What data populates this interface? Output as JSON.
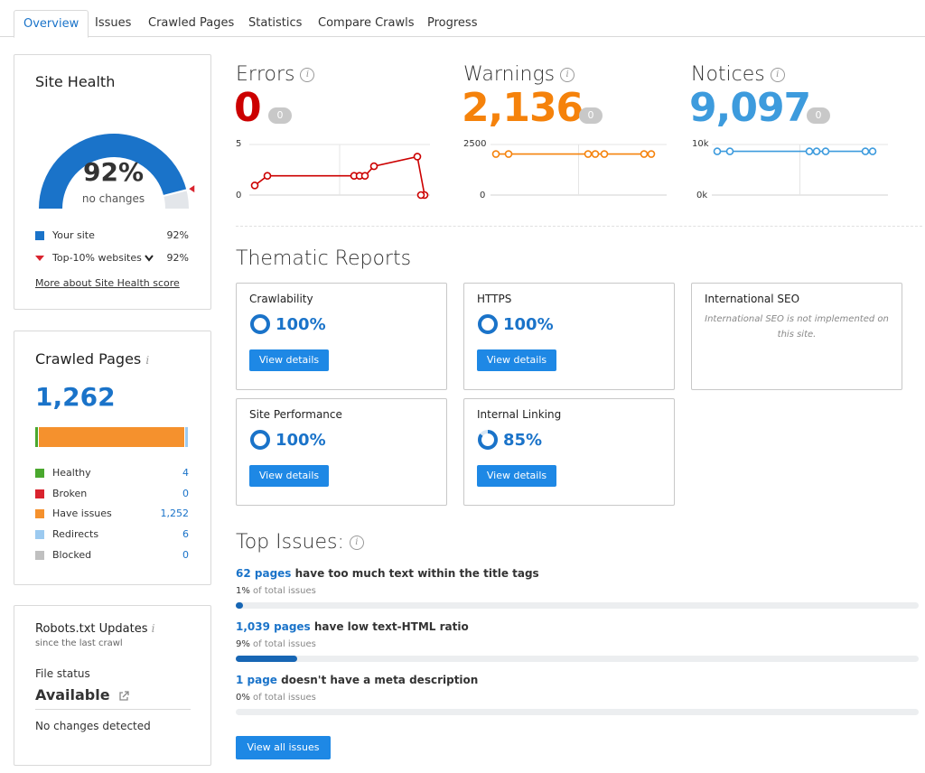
{
  "tabs": [
    {
      "label": "Overview",
      "active": true
    },
    {
      "label": "Issues"
    },
    {
      "label": "Crawled Pages"
    },
    {
      "label": "Statistics"
    },
    {
      "label": "Compare Crawls"
    },
    {
      "label": "Progress"
    }
  ],
  "site_health": {
    "title": "Site Health",
    "percent": 92,
    "percent_label": "92%",
    "change_label": "no changes",
    "legend": [
      {
        "label": "Your site",
        "value": "92%",
        "color": "#1a73c9"
      },
      {
        "label": "Top-10% websites",
        "value": "92%",
        "color": "#d9232e",
        "dropdown": "chevron-down-icon"
      }
    ],
    "more_link": "More about Site Health score"
  },
  "crawled_pages": {
    "title": "Crawled Pages",
    "info_glyph": "i",
    "total": "1,262",
    "segments": [
      {
        "label": "Healthy",
        "value": "4",
        "count": 4,
        "color": "#4aa82e"
      },
      {
        "label": "Broken",
        "value": "0",
        "count": 0,
        "color": "#d9232e"
      },
      {
        "label": "Have issues",
        "value": "1,252",
        "count": 1252,
        "color": "#f5912d"
      },
      {
        "label": "Redirects",
        "value": "6",
        "count": 6,
        "color": "#9ccaf0"
      },
      {
        "label": "Blocked",
        "value": "0",
        "count": 0,
        "color": "#c0c0c0"
      }
    ]
  },
  "robots": {
    "title": "Robots.txt Updates",
    "info_glyph": "i",
    "subtitle": "since the last crawl",
    "file_status_label": "File status",
    "file_status_value": "Available",
    "changes_label": "No changes detected"
  },
  "stats": [
    {
      "title": "Errors",
      "value": "0",
      "badge": "0",
      "color": "#cc0000",
      "y_top": "5",
      "y_bottom": "0",
      "points": [
        1,
        2,
        2,
        2,
        2,
        3,
        4,
        0,
        0
      ]
    },
    {
      "title": "Warnings",
      "value": "2,136",
      "badge": "0",
      "color": "#f5820b",
      "y_top": "2500",
      "y_bottom": "0",
      "points": [
        2136,
        2136,
        2136,
        2136,
        2136,
        2136,
        2136
      ]
    },
    {
      "title": "Notices",
      "value": "9,097",
      "badge": "0",
      "color": "#3d9bdd",
      "y_top": "10k",
      "y_bottom": "0k",
      "points": [
        9097,
        9097,
        9097,
        9097,
        9097,
        9097,
        9097
      ]
    }
  ],
  "stats_info_glyph": "i",
  "thematic": {
    "title": "Thematic Reports",
    "button_label": "View details",
    "cards": [
      {
        "name": "Crawlability",
        "percent": 100,
        "percent_label": "100%"
      },
      {
        "name": "HTTPS",
        "percent": 100,
        "percent_label": "100%"
      },
      {
        "name": "International SEO",
        "note": "International SEO is not implemented on this site."
      },
      {
        "name": "Site Performance",
        "percent": 100,
        "percent_label": "100%"
      },
      {
        "name": "Internal Linking",
        "percent": 85,
        "percent_label": "85%"
      }
    ]
  },
  "top_issues": {
    "title": "Top Issues:",
    "info_glyph": "i",
    "items": [
      {
        "count": "62 pages",
        "text": " have too much text within the title tags",
        "pct": "1%",
        "pct_suffix": " of total issues",
        "fill": 0.01
      },
      {
        "count": "1,039 pages",
        "text": " have low text-HTML ratio",
        "pct": "9%",
        "pct_suffix": " of total issues",
        "fill": 0.09
      },
      {
        "count": "1 page",
        "text": " doesn't have a meta description",
        "pct": "0%",
        "pct_suffix": " of total issues",
        "fill": 0.0
      }
    ],
    "view_all_label": "View all issues"
  }
}
